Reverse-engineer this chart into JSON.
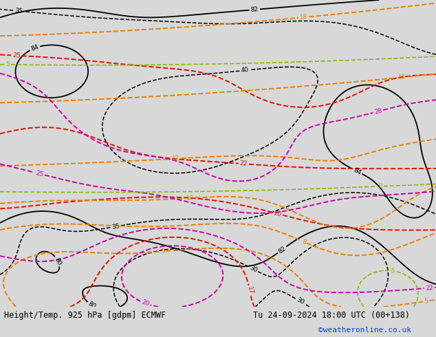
{
  "title_left": "Height/Temp. 925 hPa [gdpm] ECMWF",
  "title_right": "Tu 24-09-2024 18:00 UTC (00+138)",
  "credit": "©weatheronline.co.uk",
  "bg_color": "#d8d8d8",
  "land_color": "#c8eabc",
  "ocean_color": "#d8d8d8",
  "contour_color_black": "#000000",
  "contour_color_red": "#dd1100",
  "contour_color_orange": "#e88000",
  "contour_color_magenta": "#cc00aa",
  "contour_color_green": "#88bb00",
  "border_color": "#aaaaaa",
  "coast_color": "#555555",
  "title_fontsize": 8.5,
  "credit_fontsize": 8,
  "credit_color": "#0044cc",
  "lon_min": -22,
  "lon_max": 82,
  "lat_min": -43,
  "lat_max": 37
}
